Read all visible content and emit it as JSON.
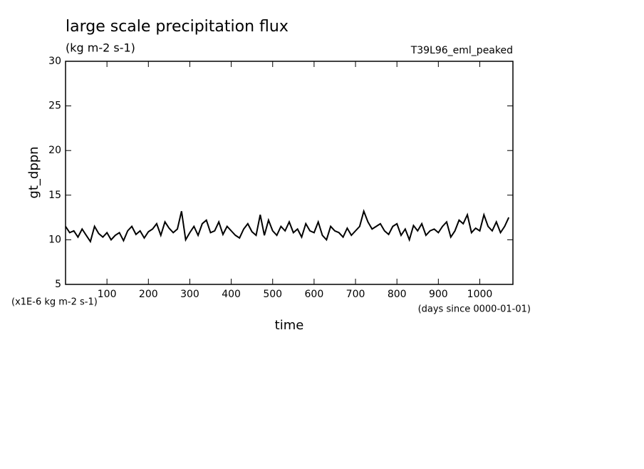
{
  "chart_data": {
    "type": "line",
    "title": "large scale precipitation flux",
    "subtitle": "(kg m-2 s-1)",
    "annotation": "T39L96_eml_peaked",
    "ylabel": "gt_dppn",
    "xlabel": "time",
    "y_unit_note": "(x1E-6 kg m-2 s-1)",
    "x_unit_note": "(days since 0000-01-01)",
    "xlim": [
      0,
      1080
    ],
    "ylim": [
      5,
      30
    ],
    "xticks": [
      100,
      200,
      300,
      400,
      500,
      600,
      700,
      800,
      900,
      1000
    ],
    "yticks": [
      5,
      10,
      15,
      20,
      25,
      30
    ],
    "color": "#000000",
    "x": [
      0,
      10,
      20,
      30,
      40,
      50,
      60,
      70,
      80,
      90,
      100,
      110,
      120,
      130,
      140,
      150,
      160,
      170,
      180,
      190,
      200,
      210,
      220,
      230,
      240,
      250,
      260,
      270,
      280,
      290,
      300,
      310,
      320,
      330,
      340,
      350,
      360,
      370,
      380,
      390,
      400,
      410,
      420,
      430,
      440,
      450,
      460,
      470,
      480,
      490,
      500,
      510,
      520,
      530,
      540,
      550,
      560,
      570,
      580,
      590,
      600,
      610,
      620,
      630,
      640,
      650,
      660,
      670,
      680,
      690,
      700,
      710,
      720,
      730,
      740,
      750,
      760,
      770,
      780,
      790,
      800,
      810,
      820,
      830,
      840,
      850,
      860,
      870,
      880,
      890,
      900,
      910,
      920,
      930,
      940,
      950,
      960,
      970,
      980,
      990,
      1000,
      1010,
      1020,
      1030,
      1040,
      1050,
      1060,
      1070
    ],
    "values": [
      11.5,
      10.8,
      11.0,
      10.3,
      11.2,
      10.5,
      9.8,
      11.5,
      10.7,
      10.3,
      10.8,
      10.0,
      10.5,
      10.8,
      9.9,
      11.0,
      11.5,
      10.6,
      11.0,
      10.2,
      10.9,
      11.2,
      11.8,
      10.5,
      12.0,
      11.3,
      10.8,
      11.2,
      13.2,
      10.0,
      10.8,
      11.5,
      10.5,
      11.8,
      12.2,
      10.8,
      11.0,
      12.0,
      10.6,
      11.5,
      11.0,
      10.5,
      10.2,
      11.2,
      11.8,
      10.9,
      10.5,
      12.8,
      10.5,
      12.2,
      11.0,
      10.5,
      11.5,
      11.0,
      12.0,
      10.8,
      11.2,
      10.3,
      11.8,
      11.0,
      10.8,
      12.0,
      10.5,
      10.0,
      11.5,
      11.0,
      10.8,
      10.3,
      11.3,
      10.5,
      11.0,
      11.5,
      13.2,
      12.0,
      11.2,
      11.5,
      11.8,
      11.0,
      10.6,
      11.5,
      11.8,
      10.5,
      11.2,
      10.0,
      11.6,
      11.0,
      11.8,
      10.5,
      11.0,
      11.2,
      10.8,
      11.5,
      12.0,
      10.3,
      11.0,
      12.2,
      11.8,
      12.8,
      10.8,
      11.3,
      11.0,
      12.8,
      11.5,
      11.0,
      12.0,
      10.8,
      11.5,
      12.5
    ]
  }
}
